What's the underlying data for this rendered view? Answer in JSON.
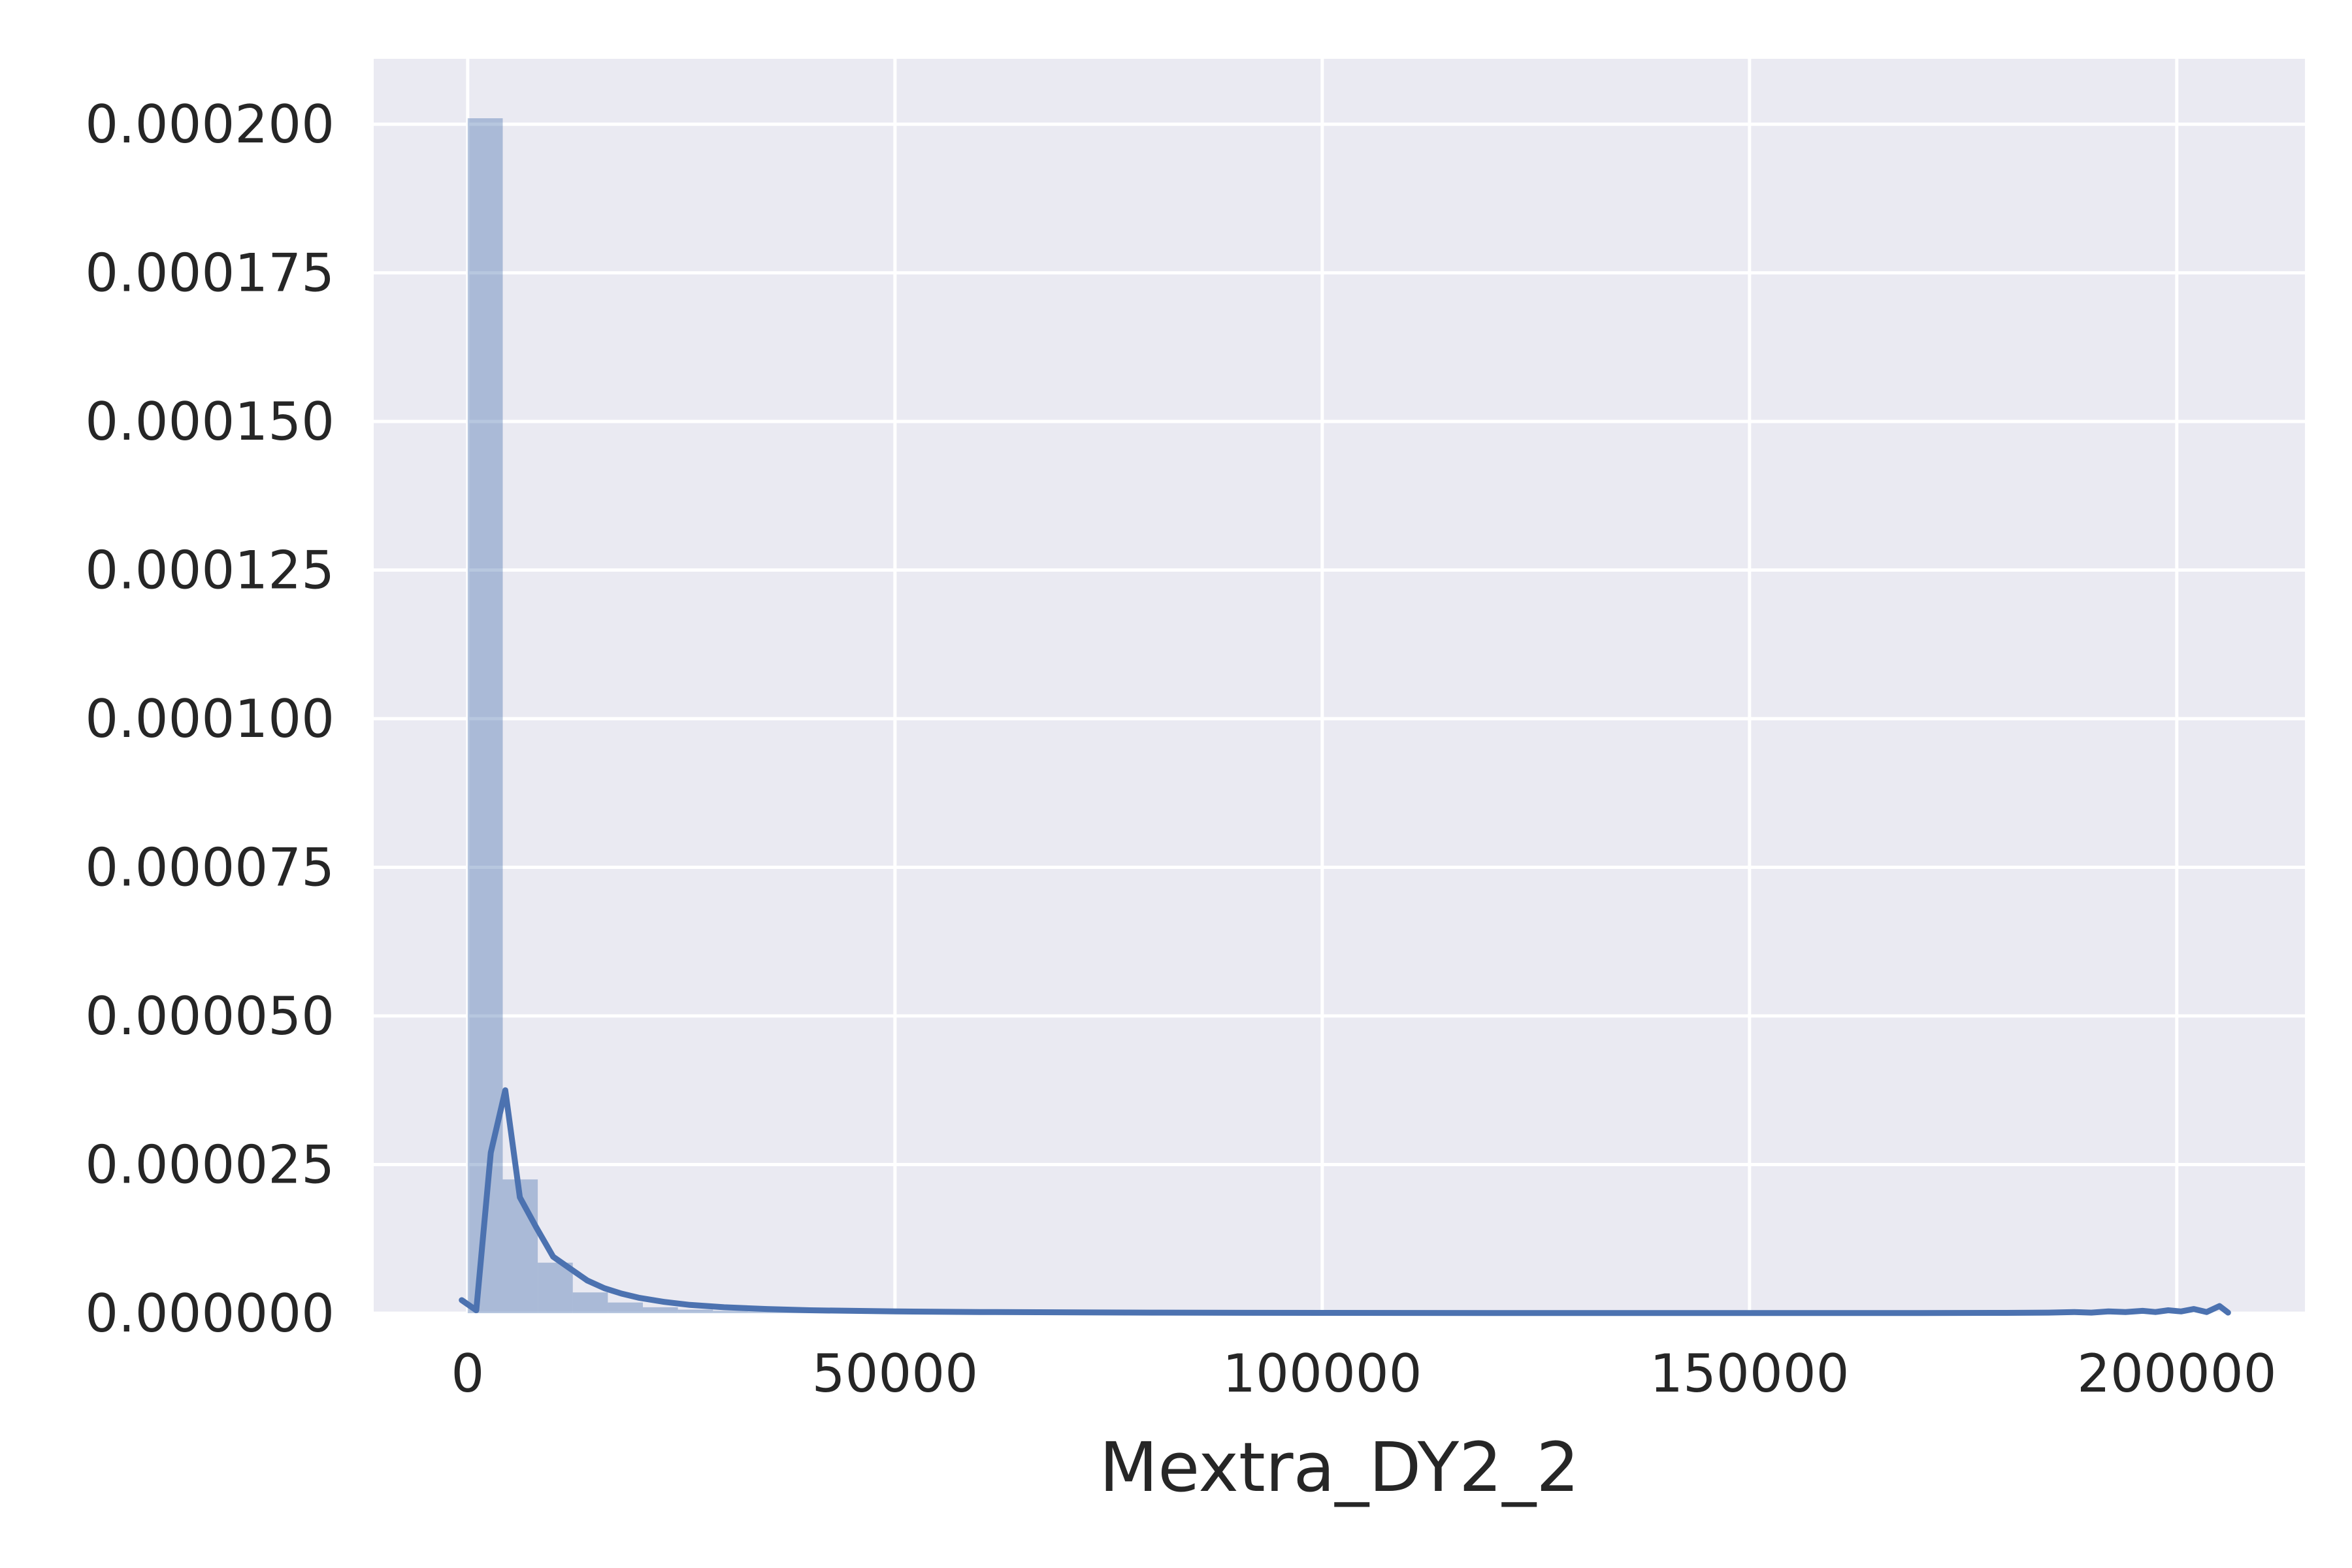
{
  "chart_data": {
    "type": "bar",
    "subtype": "histogram-with-kde",
    "title": "",
    "xlabel": "Mextra_DY2_2",
    "ylabel": "",
    "xlim": [
      -11000,
      215000
    ],
    "ylim": [
      0,
      0.000211
    ],
    "grid": true,
    "x_ticks": [
      {
        "value": 0,
        "label": "0"
      },
      {
        "value": 50000,
        "label": "50000"
      },
      {
        "value": 100000,
        "label": "100000"
      },
      {
        "value": 150000,
        "label": "150000"
      },
      {
        "value": 200000,
        "label": "200000"
      }
    ],
    "y_ticks": [
      {
        "value": 0,
        "label": "0.000000"
      },
      {
        "value": 2.5e-05,
        "label": "0.000025"
      },
      {
        "value": 5e-05,
        "label": "0.000050"
      },
      {
        "value": 7.5e-05,
        "label": "0.000075"
      },
      {
        "value": 0.0001,
        "label": "0.000100"
      },
      {
        "value": 0.000125,
        "label": "0.000125"
      },
      {
        "value": 0.00015,
        "label": "0.000150"
      },
      {
        "value": 0.000175,
        "label": "0.000175"
      },
      {
        "value": 0.0002,
        "label": "0.000200"
      }
    ],
    "bins": [
      {
        "x0": 0,
        "x1": 4100,
        "density": 0.000201
      },
      {
        "x0": 4100,
        "x1": 8200,
        "density": 2.25e-05
      },
      {
        "x0": 8200,
        "x1": 12300,
        "density": 8.5e-06
      },
      {
        "x0": 12300,
        "x1": 16400,
        "density": 3.5e-06
      },
      {
        "x0": 16400,
        "x1": 20500,
        "density": 1.8e-06
      },
      {
        "x0": 20500,
        "x1": 24600,
        "density": 1e-06
      },
      {
        "x0": 24600,
        "x1": 28700,
        "density": 6e-07
      },
      {
        "x0": 28700,
        "x1": 32800,
        "density": 4e-07
      },
      {
        "x0": 32800,
        "x1": 36900,
        "density": 3e-07
      },
      {
        "x0": 36900,
        "x1": 41000,
        "density": 2e-07
      },
      {
        "x0": 41000,
        "x1": 45100,
        "density": 1.5e-07
      },
      {
        "x0": 45100,
        "x1": 49200,
        "density": 1e-07
      }
    ],
    "kde": {
      "x": [
        -700,
        1000,
        2700,
        4400,
        6100,
        8000,
        10000,
        12000,
        14000,
        16000,
        18000,
        20000,
        23000,
        26000,
        30000,
        35000,
        40000,
        50000,
        60000,
        80000,
        100000,
        120000,
        140000,
        160000,
        170000,
        180000,
        185000,
        188000,
        190000,
        192000,
        194000,
        196000,
        197500,
        199000,
        200500,
        202000,
        203500,
        205000,
        206000
      ],
      "y": [
        2.2e-06,
        5e-07,
        2.7e-05,
        3.75e-05,
        1.95e-05,
        1.45e-05,
        9.5e-06,
        7.5e-06,
        5.5e-06,
        4.2e-06,
        3.3e-06,
        2.6e-06,
        1.9e-06,
        1.4e-06,
        1e-06,
        7e-07,
        5e-07,
        3e-07,
        2e-07,
        1e-07,
        5e-08,
        3e-08,
        2e-08,
        2e-08,
        3e-08,
        5e-08,
        1e-07,
        2e-07,
        1e-07,
        3e-07,
        2e-07,
        4e-07,
        2e-07,
        5e-07,
        3e-07,
        7e-07,
        2e-07,
        1.2e-06,
        1e-07
      ]
    },
    "colors": {
      "background": "#eaeaf2",
      "grid": "#ffffff",
      "bar_fill": "#4c72b0",
      "bar_opacity": 0.4,
      "kde_line": "#4c72b0",
      "text": "#262626"
    }
  }
}
